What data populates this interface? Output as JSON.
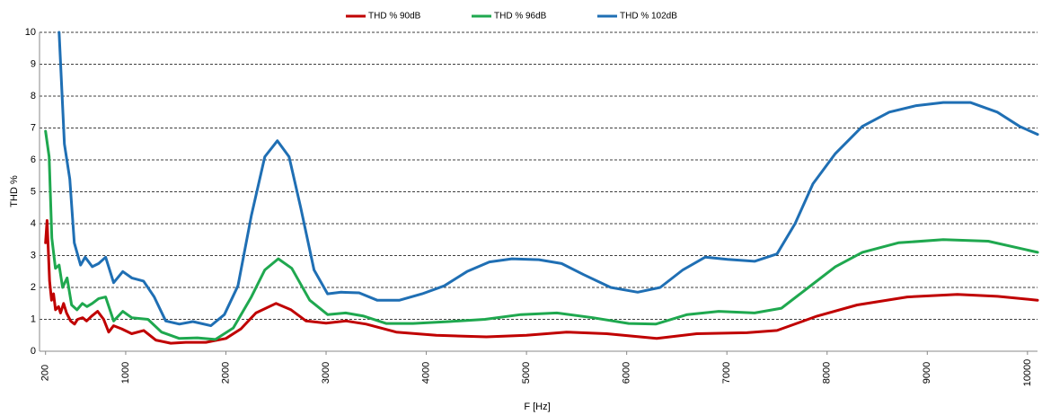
{
  "chart_data": {
    "type": "line",
    "xlabel": "F [Hz]",
    "ylabel": "THD %",
    "xlim": [
      140,
      10100
    ],
    "ylim": [
      0,
      10
    ],
    "xticks": [
      200,
      1000,
      2000,
      3000,
      4000,
      5000,
      6000,
      7000,
      8000,
      9000,
      10000
    ],
    "yticks": [
      0,
      1,
      2,
      3,
      4,
      5,
      6,
      7,
      8,
      9,
      10
    ],
    "grid": true,
    "legend": "top",
    "series": [
      {
        "name": "THD % 90dB",
        "color": "#c00000",
        "x": [
          200,
          215,
          240,
          260,
          280,
          300,
          330,
          350,
          380,
          410,
          450,
          490,
          520,
          570,
          610,
          660,
          720,
          780,
          830,
          880,
          960,
          1060,
          1180,
          1300,
          1450,
          1600,
          1800,
          2000,
          2150,
          2300,
          2500,
          2650,
          2800,
          3000,
          3200,
          3400,
          3700,
          4100,
          4600,
          5000,
          5400,
          5800,
          6300,
          6700,
          7200,
          7500,
          7900,
          8300,
          8800,
          9300,
          9700,
          10100
        ],
        "values": [
          3.4,
          4.1,
          2.2,
          1.6,
          1.8,
          1.3,
          1.4,
          1.2,
          1.5,
          1.2,
          0.95,
          0.85,
          1.0,
          1.05,
          0.95,
          1.1,
          1.25,
          1.0,
          0.6,
          0.8,
          0.7,
          0.55,
          0.65,
          0.35,
          0.25,
          0.28,
          0.28,
          0.4,
          0.7,
          1.2,
          1.5,
          1.3,
          0.95,
          0.88,
          0.95,
          0.85,
          0.6,
          0.5,
          0.45,
          0.5,
          0.6,
          0.55,
          0.4,
          0.55,
          0.58,
          0.65,
          1.1,
          1.45,
          1.7,
          1.78,
          1.72,
          1.6
        ]
      },
      {
        "name": "THD % 96dB",
        "color": "#1fa84f",
        "x": [
          200,
          236,
          263,
          299,
          335,
          370,
          415,
          460,
          514,
          568,
          613,
          666,
          730,
          800,
          880,
          971,
          1061,
          1222,
          1357,
          1536,
          1715,
          1895,
          2074,
          2254,
          2388,
          2523,
          2657,
          2837,
          3015,
          3195,
          3375,
          3599,
          3868,
          4227,
          4585,
          4944,
          5303,
          5662,
          6020,
          6290,
          6604,
          6918,
          7276,
          7545,
          7814,
          8083,
          8352,
          8711,
          9160,
          9608,
          10101
        ],
        "values": [
          6.9,
          6.1,
          3.55,
          2.6,
          2.7,
          2.0,
          2.3,
          1.45,
          1.3,
          1.5,
          1.4,
          1.5,
          1.65,
          1.7,
          0.95,
          1.25,
          1.05,
          1.0,
          0.6,
          0.4,
          0.42,
          0.37,
          0.73,
          1.7,
          2.55,
          2.9,
          2.6,
          1.6,
          1.15,
          1.2,
          1.1,
          0.87,
          0.87,
          0.93,
          1.0,
          1.15,
          1.2,
          1.05,
          0.87,
          0.85,
          1.15,
          1.25,
          1.2,
          1.35,
          2.0,
          2.65,
          3.1,
          3.4,
          3.5,
          3.45,
          3.1
        ]
      },
      {
        "name": "THD % 102dB",
        "color": "#1f6fb4",
        "x": [
          335,
          388,
          442,
          487,
          550,
          595,
          666,
          730,
          800,
          880,
          971,
          1061,
          1178,
          1285,
          1400,
          1536,
          1670,
          1850,
          1985,
          2120,
          2254,
          2388,
          2514,
          2630,
          2747,
          2880,
          3015,
          3150,
          3330,
          3509,
          3733,
          3958,
          4180,
          4406,
          4630,
          4855,
          5124,
          5350,
          5572,
          5841,
          6110,
          6335,
          6560,
          6783,
          7007,
          7276,
          7500,
          7680,
          7859,
          8083,
          8352,
          8621,
          8890,
          9160,
          9429,
          9698,
          9922,
          10101
        ],
        "values": [
          10,
          6.5,
          5.4,
          3.4,
          2.7,
          2.95,
          2.65,
          2.75,
          2.95,
          2.15,
          2.5,
          2.3,
          2.2,
          1.7,
          0.95,
          0.85,
          0.93,
          0.8,
          1.15,
          2.05,
          4.25,
          6.1,
          6.6,
          6.1,
          4.5,
          2.55,
          1.8,
          1.85,
          1.83,
          1.6,
          1.6,
          1.8,
          2.05,
          2.5,
          2.8,
          2.9,
          2.87,
          2.75,
          2.4,
          2.0,
          1.85,
          2.0,
          2.55,
          2.95,
          2.88,
          2.82,
          3.05,
          4.0,
          5.25,
          6.2,
          7.05,
          7.5,
          7.7,
          7.8,
          7.8,
          7.5,
          7.05,
          6.8
        ]
      }
    ]
  }
}
